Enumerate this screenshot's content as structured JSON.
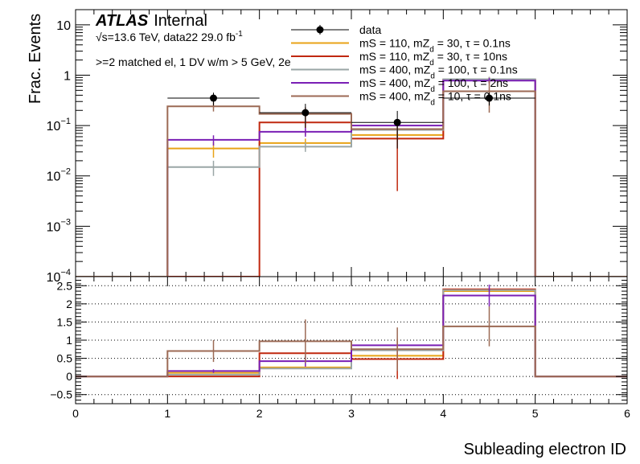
{
  "chart_data": [
    {
      "type": "line",
      "panel": "main",
      "yscale": "log",
      "ylabel": "Frac. Events",
      "xlim": [
        0,
        6
      ],
      "ylim": [
        0.0001,
        20
      ],
      "y_ticks": [
        {
          "value": 10,
          "label": "10"
        },
        {
          "value": 1,
          "label": "1"
        },
        {
          "value": 0.1,
          "label": "10",
          "exp": "−1"
        },
        {
          "value": 0.01,
          "label": "10",
          "exp": "−2"
        },
        {
          "value": 0.001,
          "label": "10",
          "exp": "−3"
        },
        {
          "value": 0.0001,
          "label": "10",
          "exp": "−4"
        }
      ],
      "atlas_label": "ATLAS",
      "atlas_status": "Internal",
      "energy_text": "√s=13.6 TeV, data22 29.0 fb",
      "energy_exp": "-1",
      "selection_text": ">=2 matched el, 1 DV w/m > 5 GeV, 2e",
      "bin_edges": [
        0,
        1,
        2,
        3,
        4,
        5,
        6
      ],
      "data": {
        "name": "data",
        "x": [
          1.5,
          2.5,
          3.5,
          4.5
        ],
        "y": [
          0.35,
          0.18,
          0.115,
          0.35
        ],
        "yerr": [
          0.1,
          0.09,
          0.08,
          0.1
        ],
        "xerr": 0.5
      },
      "series": [
        {
          "name": "mS = 110, mZ",
          "sub": "d",
          "rest": " = 30, τ = 0.1ns",
          "color": "#e8a317",
          "values": [
            0,
            0.035,
            0.045,
            0.065,
            0.82,
            0
          ],
          "errors": [
            0,
            0.012,
            0.01,
            0.012,
            0.1,
            0
          ]
        },
        {
          "name": "mS = 110, mZ",
          "sub": "d",
          "rest": " = 30, τ = 10ns",
          "color": "#c0280f",
          "values": [
            0,
            0.0001,
            0.115,
            0.055,
            0.8,
            0
          ],
          "errors": [
            0,
            0,
            0.05,
            0.05,
            0.1,
            0
          ]
        },
        {
          "name": "mS = 400, mZ",
          "sub": "d",
          "rest": " = 100, τ = 0.1ns",
          "color": "#9aa6a6",
          "values": [
            0,
            0.015,
            0.038,
            0.082,
            0.83,
            0
          ],
          "errors": [
            0,
            0.005,
            0.008,
            0.012,
            0.1,
            0
          ]
        },
        {
          "name": "mS = 400, mZ",
          "sub": "d",
          "rest": " = 100, τ = 2ns",
          "color": "#7a1fb5",
          "values": [
            0,
            0.052,
            0.075,
            0.1,
            0.78,
            0
          ],
          "errors": [
            0,
            0.012,
            0.015,
            0.015,
            0.1,
            0
          ]
        },
        {
          "name": "mS = 400, mZ",
          "sub": "d",
          "rest": " = 10, τ = 0.1ns",
          "color": "#9c6a55",
          "values": [
            0,
            0.24,
            0.17,
            0.085,
            0.48,
            0
          ],
          "errors": [
            0,
            0.05,
            0.06,
            0.03,
            0.3,
            0
          ]
        }
      ]
    },
    {
      "type": "line",
      "panel": "ratio",
      "xlabel": "Subleading electron ID",
      "xlim": [
        0,
        6
      ],
      "ylim": [
        -0.75,
        2.75
      ],
      "x_ticks": [
        "0",
        "1",
        "2",
        "3",
        "4",
        "5",
        "6"
      ],
      "y_ticks": [
        {
          "value": 2.5,
          "label": "2.5"
        },
        {
          "value": 2,
          "label": "2"
        },
        {
          "value": 1.5,
          "label": "1.5"
        },
        {
          "value": 1,
          "label": "1"
        },
        {
          "value": 0.5,
          "label": "0.5"
        },
        {
          "value": 0,
          "label": "0"
        },
        {
          "value": -0.5,
          "label": "−0.5"
        }
      ],
      "series": [
        {
          "name": "mS = 110, mZd = 30, τ = 0.1ns",
          "color": "#e8a317",
          "values": [
            0,
            0.1,
            0.25,
            0.57,
            2.35,
            0
          ],
          "errors": [
            0,
            0,
            0,
            0,
            0,
            0
          ]
        },
        {
          "name": "mS = 110, mZd = 30, τ = 10ns",
          "color": "#c0280f",
          "values": [
            0,
            0.0,
            0.64,
            0.48,
            2.4,
            0
          ],
          "errors": [
            0,
            0,
            0,
            0.55,
            0,
            0
          ]
        },
        {
          "name": "mS = 400, mZd = 100, τ = 0.1ns",
          "color": "#9aa6a6",
          "values": [
            0,
            0.05,
            0.22,
            0.72,
            2.38,
            0
          ],
          "errors": [
            0,
            0,
            0,
            0,
            0,
            0
          ]
        },
        {
          "name": "mS = 400, mZd = 100, τ = 2ns",
          "color": "#7a1fb5",
          "values": [
            0,
            0.15,
            0.42,
            0.86,
            2.23,
            0
          ],
          "errors": [
            0,
            0.05,
            0.15,
            0,
            0.3,
            0
          ]
        },
        {
          "name": "mS = 400, mZd = 10, τ = 0.1ns",
          "color": "#9c6a55",
          "values": [
            0,
            0.7,
            0.97,
            0.75,
            1.38,
            0
          ],
          "errors": [
            0,
            0.3,
            0.6,
            0.6,
            0.55,
            0
          ]
        }
      ]
    }
  ]
}
